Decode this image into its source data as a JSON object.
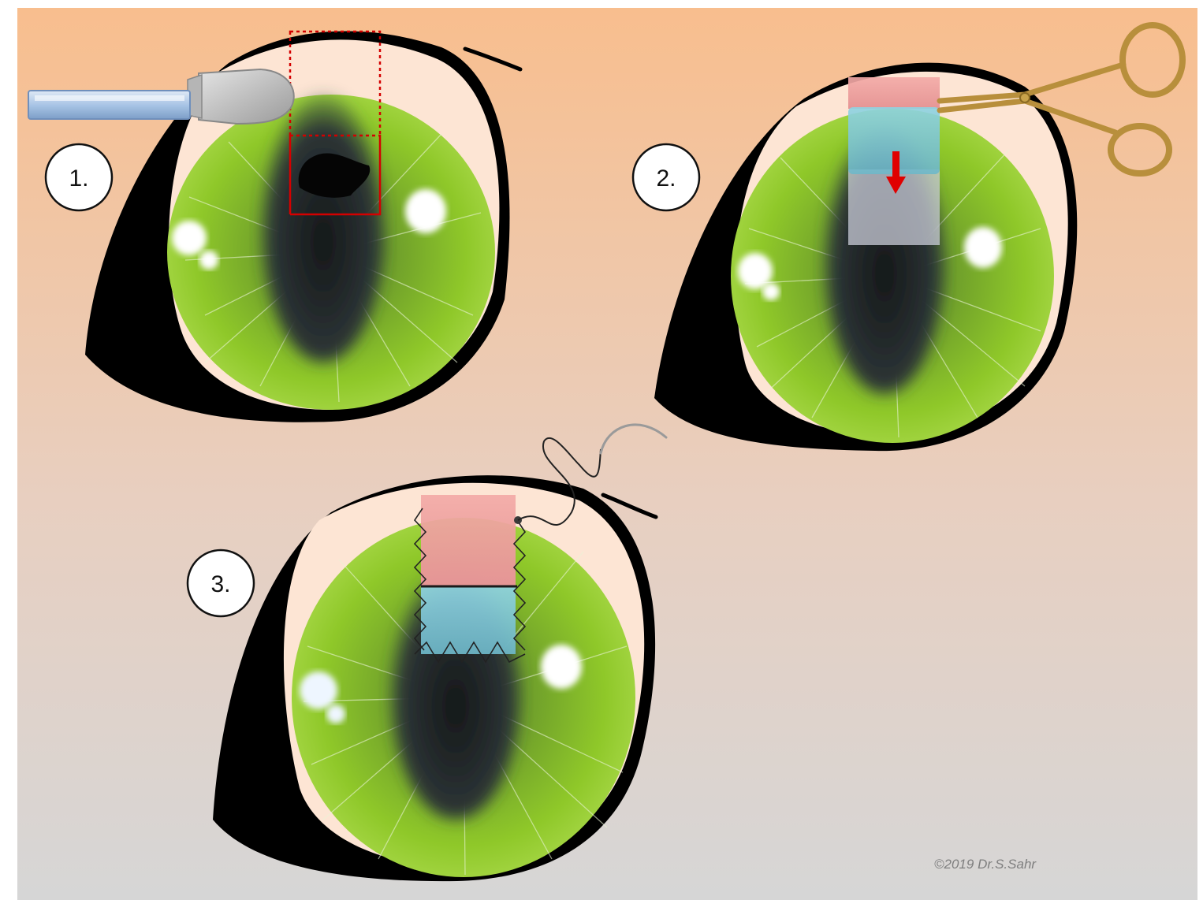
{
  "steps": [
    {
      "label": "1."
    },
    {
      "label": "2."
    },
    {
      "label": "3."
    }
  ],
  "copyright": "©2019 Dr.S.Sahr",
  "colors": {
    "background_top": "#f8be8e",
    "background_bottom": "#d7d7d7",
    "iris": "#7fbf22",
    "sclera": "#fde5d4",
    "pupil": "#2a2f30",
    "graft_conjunctiva": "#e89a9a",
    "graft_cornea": "#7fc7d6",
    "marker_red": "#e00000",
    "instrument_gold": "#c8a24a"
  },
  "icons": {
    "trephine": "blade-instrument-icon",
    "scissors": "scissors-icon",
    "needle": "curved-needle-icon",
    "arrow": "arrow-down-icon"
  }
}
